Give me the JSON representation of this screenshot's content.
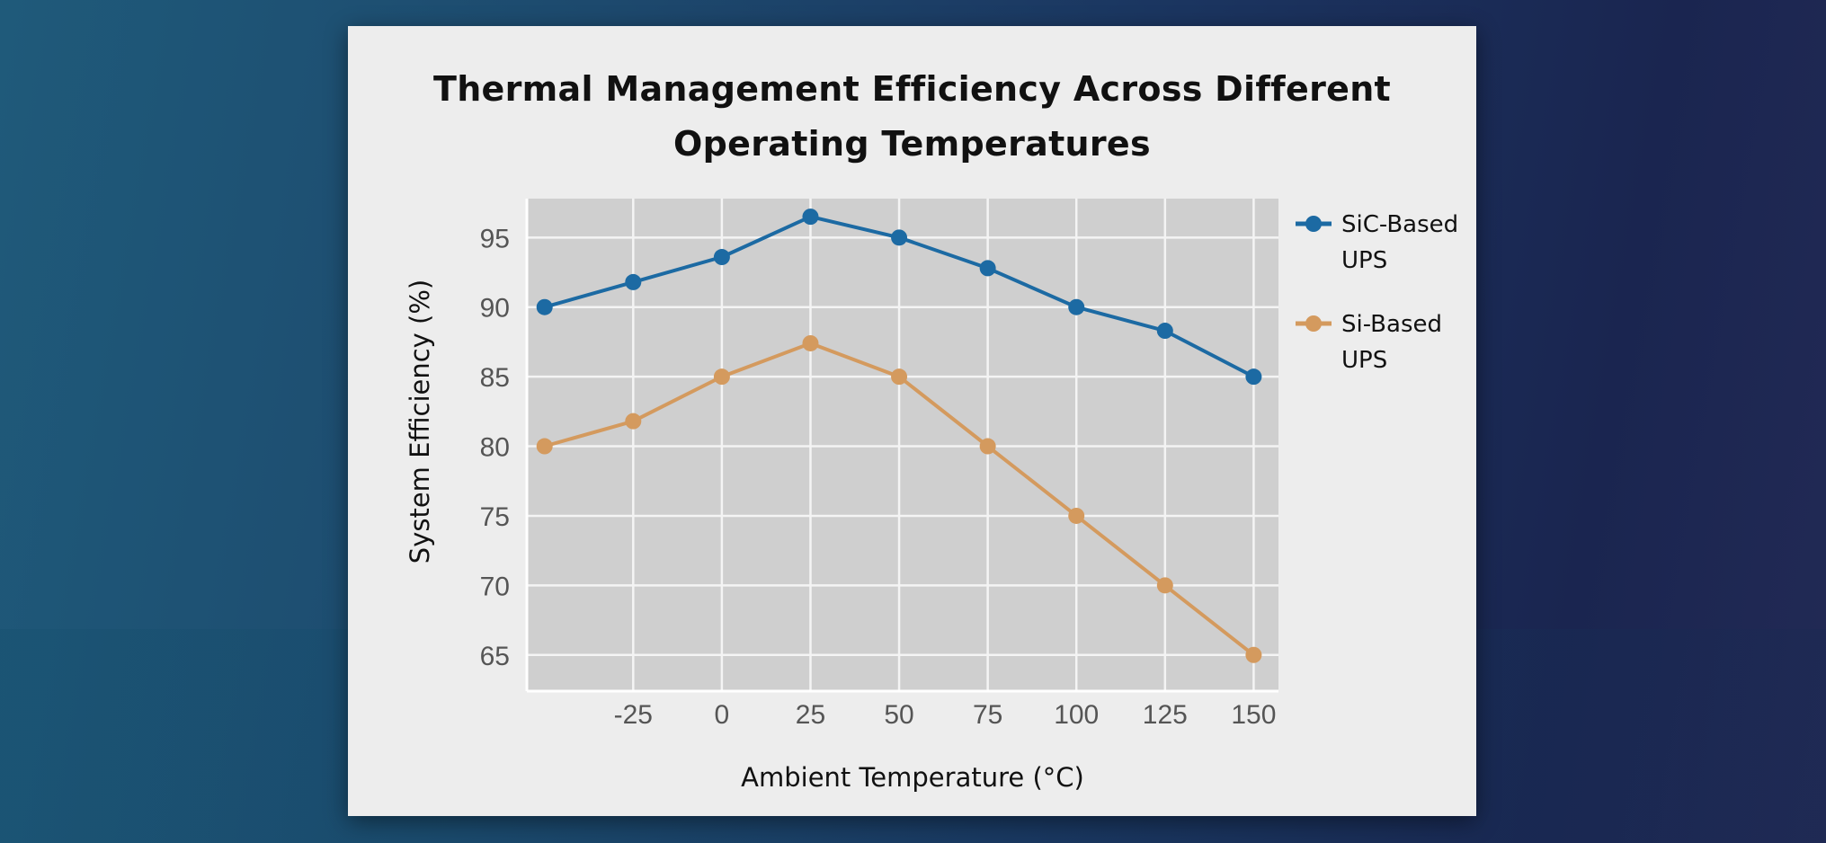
{
  "chart_data": {
    "type": "line",
    "title": "Thermal Management Efficiency Across Different Operating Temperatures",
    "title_lines": [
      "Thermal Management Efficiency Across Different",
      "Operating Temperatures"
    ],
    "xlabel": "Ambient Temperature (°C)",
    "ylabel": "System Efficiency (%)",
    "x": [
      -50,
      -25,
      0,
      25,
      50,
      75,
      100,
      125,
      150
    ],
    "x_ticks": [
      "-25",
      "0",
      "25",
      "50",
      "75",
      "100",
      "125",
      "150"
    ],
    "x_tick_values": [
      -25,
      0,
      25,
      50,
      75,
      100,
      125,
      150
    ],
    "y_ticks": [
      "95",
      "90",
      "85",
      "80",
      "75",
      "70",
      "65"
    ],
    "y_tick_values": [
      95,
      90,
      85,
      80,
      75,
      70,
      65
    ],
    "xlim": [
      -55,
      157
    ],
    "ylim": [
      62.4,
      97.8
    ],
    "grid": true,
    "legend_position": "right",
    "series": [
      {
        "name": "SiC-Based UPS",
        "legend_lines": [
          "SiC-Based",
          "UPS"
        ],
        "color": "#1c6aa3",
        "values": [
          90,
          91.8,
          93.6,
          96.5,
          95,
          92.8,
          90,
          88.3,
          85
        ]
      },
      {
        "name": "Si-Based UPS",
        "legend_lines": [
          "Si-Based",
          "UPS"
        ],
        "color": "#d49a5e",
        "values": [
          80,
          81.8,
          85,
          87.4,
          85,
          80,
          75,
          70,
          65
        ]
      }
    ]
  }
}
